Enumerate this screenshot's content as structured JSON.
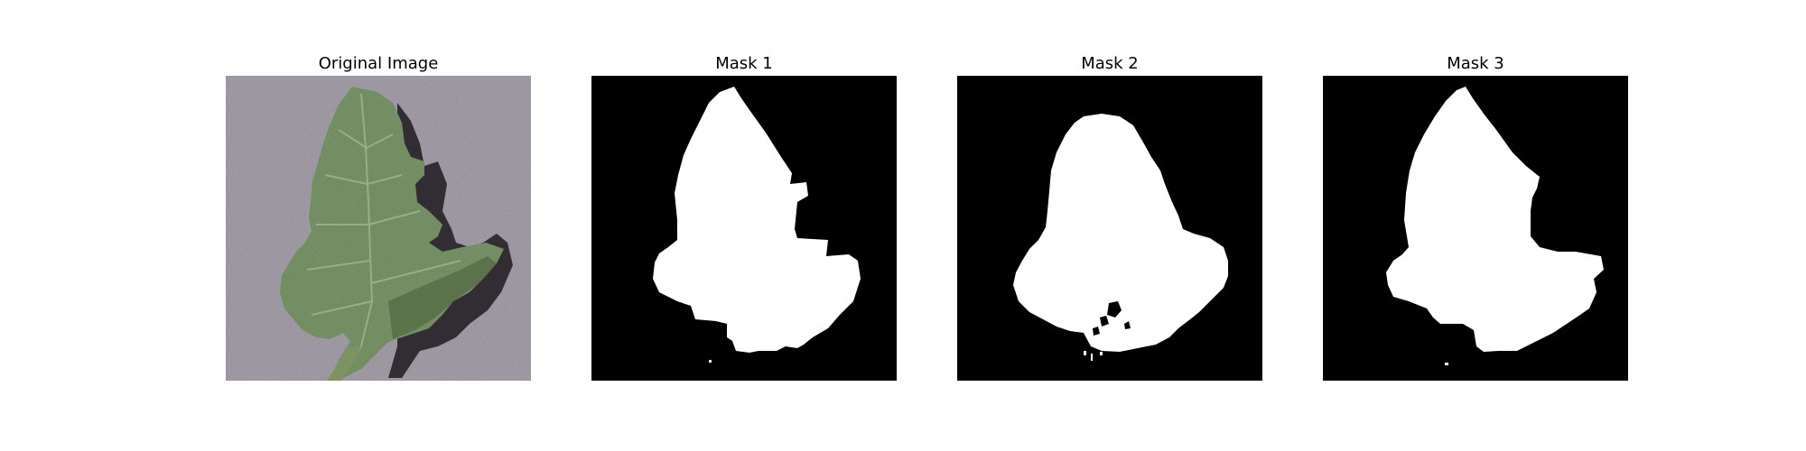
{
  "figure": {
    "panels": [
      {
        "title": "Original Image",
        "kind": "photo",
        "content": "green tomato leaf on grey textured background"
      },
      {
        "title": "Mask 1",
        "kind": "mask",
        "foreground_color": "#ffffff",
        "background_color": "#000000"
      },
      {
        "title": "Mask 2",
        "kind": "mask",
        "foreground_color": "#ffffff",
        "background_color": "#000000"
      },
      {
        "title": "Mask 3",
        "kind": "mask",
        "foreground_color": "#ffffff",
        "background_color": "#000000"
      }
    ],
    "colors": {
      "background_gray": "#8d8893",
      "leaf_green": "#5c7a4a",
      "leaf_dark": "#2e4124",
      "vein": "#a8b98e",
      "shadow": "#1e1b20"
    }
  }
}
